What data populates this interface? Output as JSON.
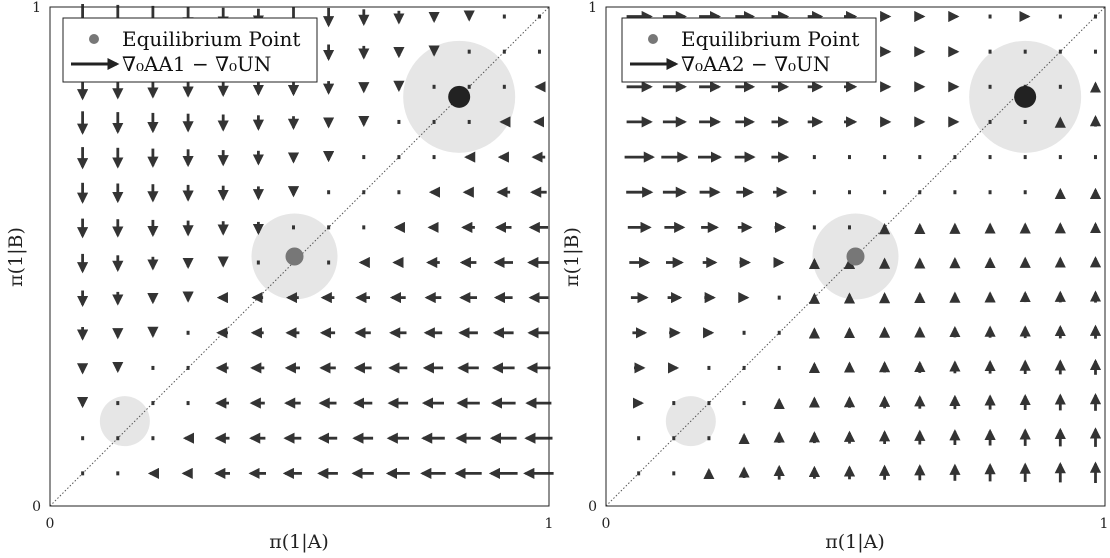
{
  "chart_data": [
    {
      "type": "quiver",
      "xlabel": "π(1|A)",
      "ylabel": "π(1|B)",
      "xlim": [
        0,
        1
      ],
      "ylim": [
        0,
        1
      ],
      "x_ticks": [
        "0",
        "1"
      ],
      "y_ticks": [
        "0",
        "1"
      ],
      "grid": false,
      "legend": {
        "placement": "top-left",
        "entries": [
          "Equilibrium Point",
          "∇₀AA1 − ∇₀UN"
        ]
      },
      "diagonal_reference_line": true,
      "equilibria": [
        {
          "x": 0.15,
          "y": 0.17,
          "shade": "#e6e6e6",
          "marker": "none"
        },
        {
          "x": 0.49,
          "y": 0.5,
          "shade": "#e6e6e6",
          "marker": "#777777"
        },
        {
          "x": 0.82,
          "y": 0.82,
          "shade": "#e6e6e6",
          "marker": "#222222"
        }
      ],
      "field_model": "aa1"
    },
    {
      "type": "quiver",
      "xlabel": "π(1|A)",
      "ylabel": "π(1|B)",
      "xlim": [
        0,
        1
      ],
      "ylim": [
        0,
        1
      ],
      "x_ticks": [
        "0",
        "1"
      ],
      "y_ticks": [
        "0",
        "1"
      ],
      "grid": false,
      "legend": {
        "placement": "top-left",
        "entries": [
          "Equilibrium Point",
          "∇₀AA2 − ∇₀UN"
        ]
      },
      "diagonal_reference_line": true,
      "equilibria": [
        {
          "x": 0.17,
          "y": 0.17,
          "shade": "#e6e6e6",
          "marker": "none"
        },
        {
          "x": 0.5,
          "y": 0.5,
          "shade": "#e6e6e6",
          "marker": "#777777"
        },
        {
          "x": 0.84,
          "y": 0.82,
          "shade": "#e6e6e6",
          "marker": "#222222"
        }
      ],
      "field_model": "aa2"
    }
  ],
  "colors": {
    "arrow": "#333333",
    "axis": "#222222",
    "shade": "#e6e6e6"
  }
}
